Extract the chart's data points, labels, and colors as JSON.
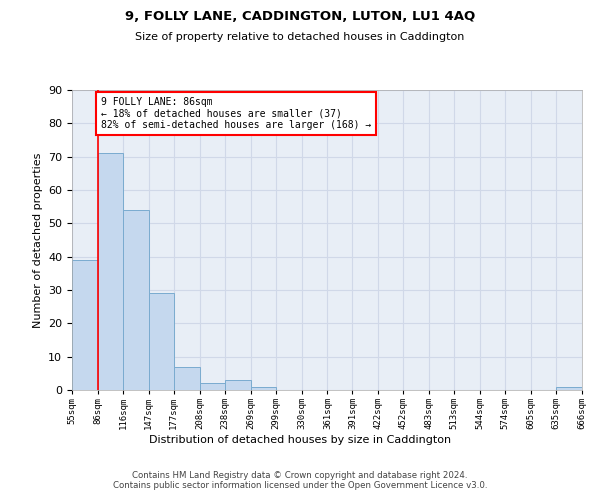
{
  "title": "9, FOLLY LANE, CADDINGTON, LUTON, LU1 4AQ",
  "subtitle": "Size of property relative to detached houses in Caddington",
  "xlabel": "Distribution of detached houses by size in Caddington",
  "ylabel": "Number of detached properties",
  "bar_edges": [
    55,
    86,
    116,
    147,
    177,
    208,
    238,
    269,
    299,
    330,
    361,
    391,
    422,
    452,
    483,
    513,
    544,
    574,
    605,
    635,
    666
  ],
  "bar_values": [
    39,
    71,
    54,
    29,
    7,
    2,
    3,
    1,
    0,
    0,
    0,
    0,
    0,
    0,
    0,
    0,
    0,
    0,
    0,
    1
  ],
  "bar_color": "#c5d8ee",
  "bar_edge_color": "#7aabcf",
  "property_line_x": 86,
  "annotation_text": "9 FOLLY LANE: 86sqm\n← 18% of detached houses are smaller (37)\n82% of semi-detached houses are larger (168) →",
  "annotation_box_color": "white",
  "annotation_box_edgecolor": "red",
  "red_line_color": "red",
  "ylim": [
    0,
    90
  ],
  "yticks": [
    0,
    10,
    20,
    30,
    40,
    50,
    60,
    70,
    80,
    90
  ],
  "tick_labels": [
    "55sqm",
    "86sqm",
    "116sqm",
    "147sqm",
    "177sqm",
    "208sqm",
    "238sqm",
    "269sqm",
    "299sqm",
    "330sqm",
    "361sqm",
    "391sqm",
    "422sqm",
    "452sqm",
    "483sqm",
    "513sqm",
    "544sqm",
    "574sqm",
    "605sqm",
    "635sqm",
    "666sqm"
  ],
  "footer_text": "Contains HM Land Registry data © Crown copyright and database right 2024.\nContains public sector information licensed under the Open Government Licence v3.0.",
  "grid_color": "#d0d8e8",
  "background_color": "#e8eef6"
}
